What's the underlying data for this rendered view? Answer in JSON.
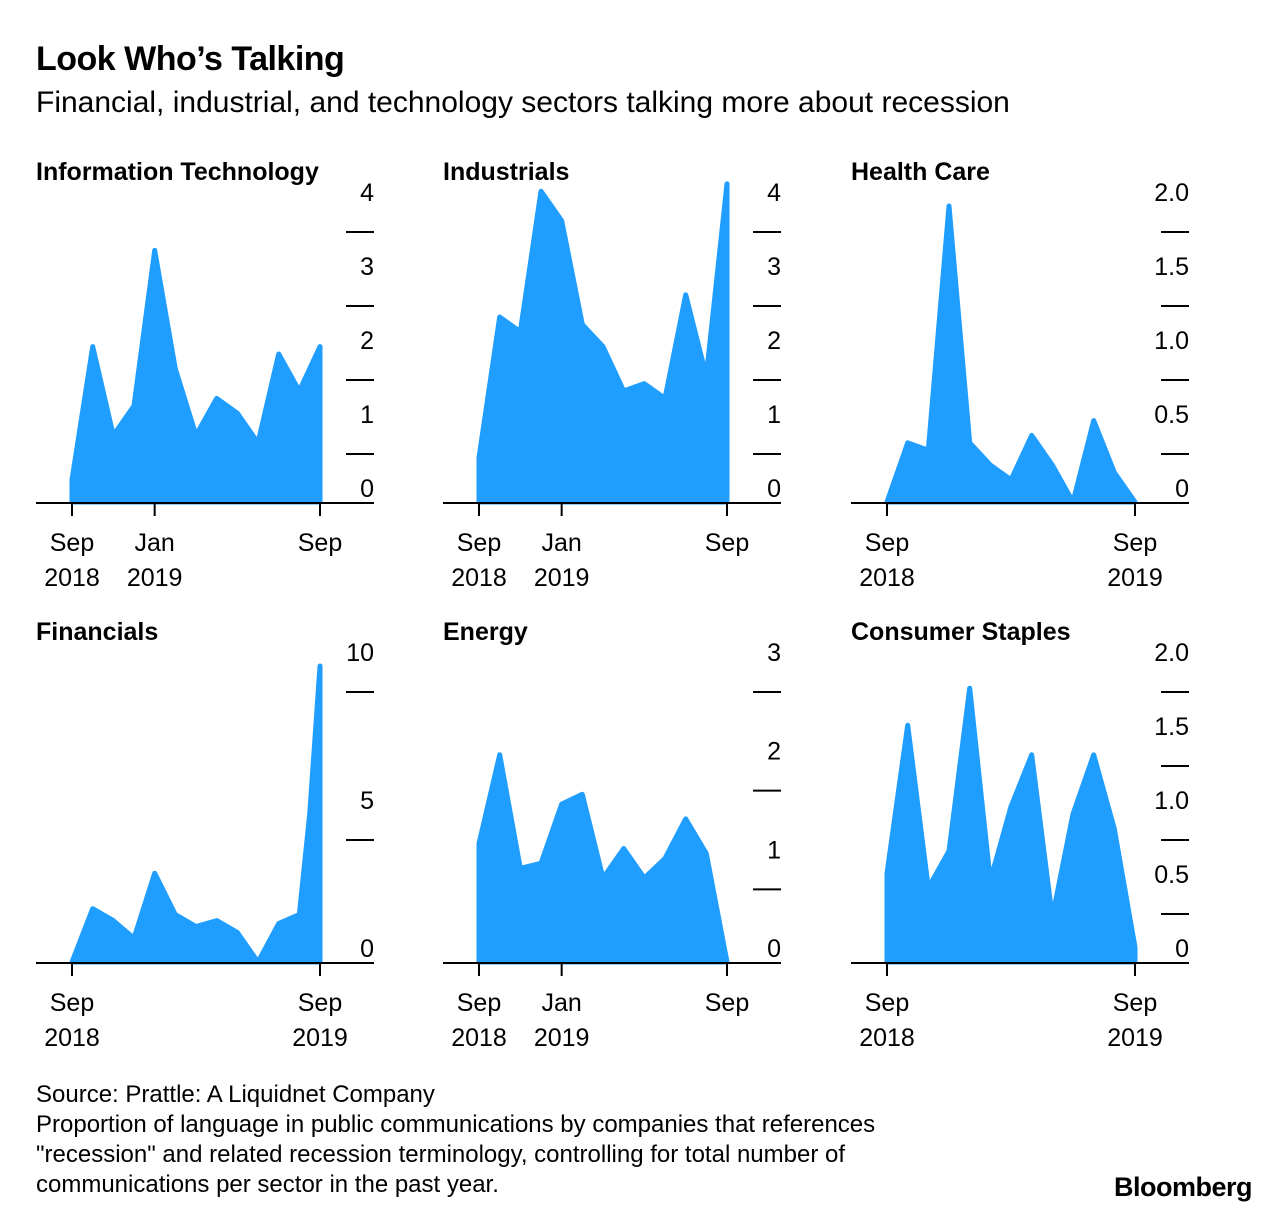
{
  "title": "Look Who’s Talking",
  "subtitle": "Financial, industrial, and technology sectors talking more about recession",
  "colors": {
    "fill": "#1f9eff",
    "axis": "#000000"
  },
  "chart_data": [
    {
      "type": "area",
      "title": "Information Technology",
      "ylim": [
        0,
        4
      ],
      "yticks": [
        "0",
        "1",
        "2",
        "3",
        "4"
      ],
      "xlim": [
        0,
        12
      ],
      "xticks": [
        {
          "x": 0,
          "label": [
            "Sep",
            "2018"
          ]
        },
        {
          "x": 4,
          "label": [
            "Jan",
            "2019"
          ]
        },
        {
          "x": 12,
          "label": [
            "Sep",
            ""
          ]
        }
      ],
      "x": [
        0,
        1,
        2,
        3,
        4,
        5,
        6,
        7,
        8,
        9,
        10,
        11,
        12
      ],
      "values": [
        0.3,
        2.1,
        0.9,
        1.3,
        3.4,
        1.8,
        0.9,
        1.4,
        1.2,
        0.8,
        2.0,
        1.5,
        2.1
      ]
    },
    {
      "type": "area",
      "title": "Industrials",
      "ylim": [
        0,
        4
      ],
      "yticks": [
        "0",
        "1",
        "2",
        "3",
        "4"
      ],
      "xlim": [
        0,
        12
      ],
      "xticks": [
        {
          "x": 0,
          "label": [
            "Sep",
            "2018"
          ]
        },
        {
          "x": 4,
          "label": [
            "Jan",
            "2019"
          ]
        },
        {
          "x": 12,
          "label": [
            "Sep",
            ""
          ]
        }
      ],
      "x": [
        0,
        1,
        2,
        3,
        4,
        5,
        6,
        7,
        8,
        9,
        10,
        11,
        12
      ],
      "values": [
        0.6,
        2.5,
        2.3,
        4.2,
        3.8,
        2.4,
        2.1,
        1.5,
        1.6,
        1.4,
        2.8,
        1.7,
        4.3
      ]
    },
    {
      "type": "area",
      "title": "Health Care",
      "ylim": [
        0,
        2
      ],
      "yticks": [
        "0",
        "0.5",
        "1.0",
        "1.5",
        "2.0"
      ],
      "xlim": [
        0,
        12
      ],
      "xticks": [
        {
          "x": 0,
          "label": [
            "Sep",
            "2018"
          ]
        },
        {
          "x": 12,
          "label": [
            "Sep",
            "2019"
          ]
        }
      ],
      "x": [
        0,
        1,
        2,
        3,
        4,
        5,
        6,
        7,
        8,
        9,
        10,
        11,
        12
      ],
      "values": [
        0.0,
        0.4,
        0.35,
        2.0,
        0.4,
        0.25,
        0.15,
        0.45,
        0.25,
        0.0,
        0.55,
        0.2,
        0.0
      ]
    },
    {
      "type": "area",
      "title": "Financials",
      "ylim": [
        0,
        10
      ],
      "yticks": [
        "0",
        "5",
        "10"
      ],
      "xlim": [
        0,
        12
      ],
      "xticks": [
        {
          "x": 0,
          "label": [
            "Sep",
            "2018"
          ]
        },
        {
          "x": 12,
          "label": [
            "Sep",
            "2019"
          ]
        }
      ],
      "x": [
        0,
        1,
        2,
        3,
        4,
        5,
        6,
        7,
        8,
        9,
        10,
        11,
        11.5,
        12
      ],
      "values": [
        0.0,
        1.8,
        1.4,
        0.8,
        3.0,
        1.6,
        1.2,
        1.4,
        1.0,
        0.0,
        1.3,
        1.6,
        5.0,
        10.0
      ]
    },
    {
      "type": "area",
      "title": "Energy",
      "ylim": [
        0,
        3
      ],
      "yticks": [
        "0",
        "1",
        "2",
        "3"
      ],
      "xlim": [
        0,
        12
      ],
      "xticks": [
        {
          "x": 0,
          "label": [
            "Sep",
            "2018"
          ]
        },
        {
          "x": 4,
          "label": [
            "Jan",
            "2019"
          ]
        },
        {
          "x": 12,
          "label": [
            "Sep",
            ""
          ]
        }
      ],
      "x": [
        0,
        1,
        2,
        3,
        4,
        5,
        6,
        7,
        8,
        9,
        10,
        11,
        12
      ],
      "values": [
        1.2,
        2.1,
        0.95,
        1.0,
        1.6,
        1.7,
        0.85,
        1.15,
        0.85,
        1.05,
        1.45,
        1.1,
        0.0
      ]
    },
    {
      "type": "area",
      "title": "Consumer Staples",
      "ylim": [
        0,
        2
      ],
      "yticks": [
        "0",
        "0.5",
        "1.0",
        "1.5",
        "2.0"
      ],
      "xlim": [
        0,
        12
      ],
      "xticks": [
        {
          "x": 0,
          "label": [
            "Sep",
            "2018"
          ]
        },
        {
          "x": 12,
          "label": [
            "Sep",
            "2019"
          ]
        }
      ],
      "x": [
        0,
        1,
        2,
        3,
        4,
        5,
        6,
        7,
        8,
        9,
        10,
        11,
        12
      ],
      "values": [
        0.6,
        1.6,
        0.5,
        0.75,
        1.85,
        0.55,
        1.05,
        1.4,
        0.3,
        1.0,
        1.4,
        0.9,
        0.1
      ]
    }
  ],
  "footer": {
    "source": "Source: Prattle: A Liquidnet Company",
    "line1": "Proportion of language in public communications by companies that references",
    "line2": "\"recession\" and related recession terminology, controlling for total number of",
    "line3": "communications per sector in the past year."
  },
  "brand": "Bloomberg"
}
